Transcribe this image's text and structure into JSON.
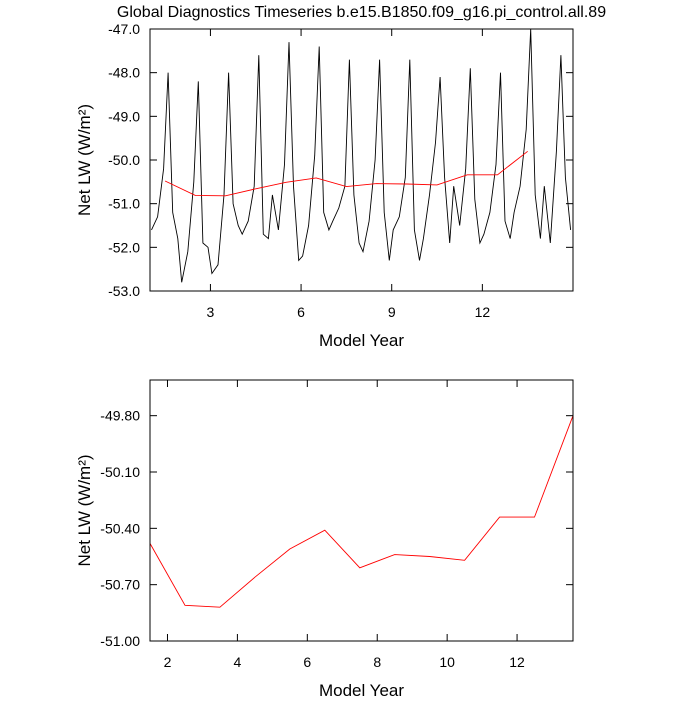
{
  "chart_data": [
    {
      "type": "line",
      "title": "Global Diagnostics Timeseries b.e15.B1850.f09_g16.pi_control.all.89",
      "xlabel": "Model Year",
      "ylabel": "Net LW (W/m²)",
      "xlim": [
        1,
        15
      ],
      "xticks": [
        3,
        6,
        9,
        12
      ],
      "ylim": [
        -53,
        -47
      ],
      "yticks": [
        {
          "value": -53,
          "label": "-53.0"
        },
        {
          "value": -52,
          "label": "-52.0"
        },
        {
          "value": -51,
          "label": "-51.0"
        },
        {
          "value": -50,
          "label": "-50.0"
        },
        {
          "value": -49,
          "label": "-49.0"
        },
        {
          "value": -48,
          "label": "-48.0"
        },
        {
          "value": -47,
          "label": "-47.0"
        }
      ],
      "series": [
        {
          "color": "#000000",
          "x": [
            1.05,
            1.25,
            1.45,
            1.6,
            1.75,
            1.92,
            2.05,
            2.25,
            2.45,
            2.6,
            2.75,
            2.92,
            3.05,
            3.25,
            3.45,
            3.6,
            3.75,
            3.92,
            4.05,
            4.25,
            4.45,
            4.6,
            4.75,
            4.92,
            5.05,
            5.25,
            5.45,
            5.6,
            5.75,
            5.92,
            6.05,
            6.25,
            6.45,
            6.6,
            6.75,
            6.92,
            7.05,
            7.25,
            7.45,
            7.6,
            7.75,
            7.92,
            8.05,
            8.25,
            8.45,
            8.6,
            8.75,
            8.92,
            9.05,
            9.25,
            9.45,
            9.6,
            9.75,
            9.92,
            10.05,
            10.25,
            10.45,
            10.6,
            10.75,
            10.92,
            11.05,
            11.25,
            11.45,
            11.6,
            11.75,
            11.92,
            12.05,
            12.25,
            12.45,
            12.6,
            12.75,
            12.92,
            13.05,
            13.25,
            13.45,
            13.6,
            13.75,
            13.92,
            14.05,
            14.25,
            14.45,
            14.6,
            14.75,
            14.92
          ],
          "values": [
            -51.6,
            -51.3,
            -50.2,
            -48.0,
            -51.2,
            -51.8,
            -52.8,
            -52.1,
            -50.5,
            -48.2,
            -51.9,
            -52.0,
            -52.6,
            -52.4,
            -50.8,
            -48.0,
            -51.0,
            -51.5,
            -51.7,
            -51.4,
            -50.6,
            -47.6,
            -51.7,
            -51.8,
            -50.8,
            -51.6,
            -50.1,
            -47.3,
            -50.6,
            -52.3,
            -52.2,
            -51.5,
            -49.9,
            -47.4,
            -51.2,
            -51.6,
            -51.4,
            -51.1,
            -50.6,
            -47.7,
            -50.8,
            -51.9,
            -52.1,
            -51.4,
            -50.0,
            -47.7,
            -51.2,
            -52.3,
            -51.6,
            -51.3,
            -50.4,
            -47.7,
            -51.6,
            -52.3,
            -51.8,
            -50.8,
            -49.6,
            -48.1,
            -50.4,
            -51.9,
            -50.6,
            -51.5,
            -50.2,
            -47.9,
            -50.9,
            -51.9,
            -51.7,
            -51.2,
            -50.1,
            -48.0,
            -51.4,
            -51.8,
            -51.2,
            -50.6,
            -49.3,
            -47.0,
            -50.8,
            -51.8,
            -50.6,
            -51.9,
            -49.8,
            -47.6,
            -50.4,
            -51.6
          ]
        },
        {
          "color": "#ff0000",
          "x": [
            1.5,
            2.5,
            3.5,
            4.5,
            5.5,
            6.5,
            7.5,
            8.5,
            9.5,
            10.5,
            11.5,
            12.5,
            13.5
          ],
          "values": [
            -50.48,
            -50.81,
            -50.82,
            -50.66,
            -50.51,
            -50.41,
            -50.61,
            -50.54,
            -50.55,
            -50.57,
            -50.34,
            -50.34,
            -49.8
          ]
        }
      ]
    },
    {
      "type": "line",
      "xlabel": "Model Year",
      "ylabel": "Net LW (W/m²)",
      "xlim": [
        1.5,
        13.6
      ],
      "xticks": [
        2,
        4,
        6,
        8,
        10,
        12
      ],
      "ylim": [
        -51,
        -49.61
      ],
      "yticks": [
        {
          "value": -51,
          "label": "-51.00"
        },
        {
          "value": -50.7,
          "label": "-50.70"
        },
        {
          "value": -50.4,
          "label": "-50.40"
        },
        {
          "value": -50.1,
          "label": "-50.10"
        },
        {
          "value": -49.8,
          "label": "-49.80"
        }
      ],
      "series": [
        {
          "color": "#ff0000",
          "x": [
            1.5,
            2.5,
            3.5,
            4.5,
            5.5,
            6.5,
            7.5,
            8.5,
            9.5,
            10.5,
            11.5,
            12.5,
            13.6
          ],
          "values": [
            -50.48,
            -50.81,
            -50.82,
            -50.66,
            -50.51,
            -50.41,
            -50.61,
            -50.54,
            -50.55,
            -50.57,
            -50.34,
            -50.34,
            -49.8
          ]
        }
      ]
    }
  ]
}
